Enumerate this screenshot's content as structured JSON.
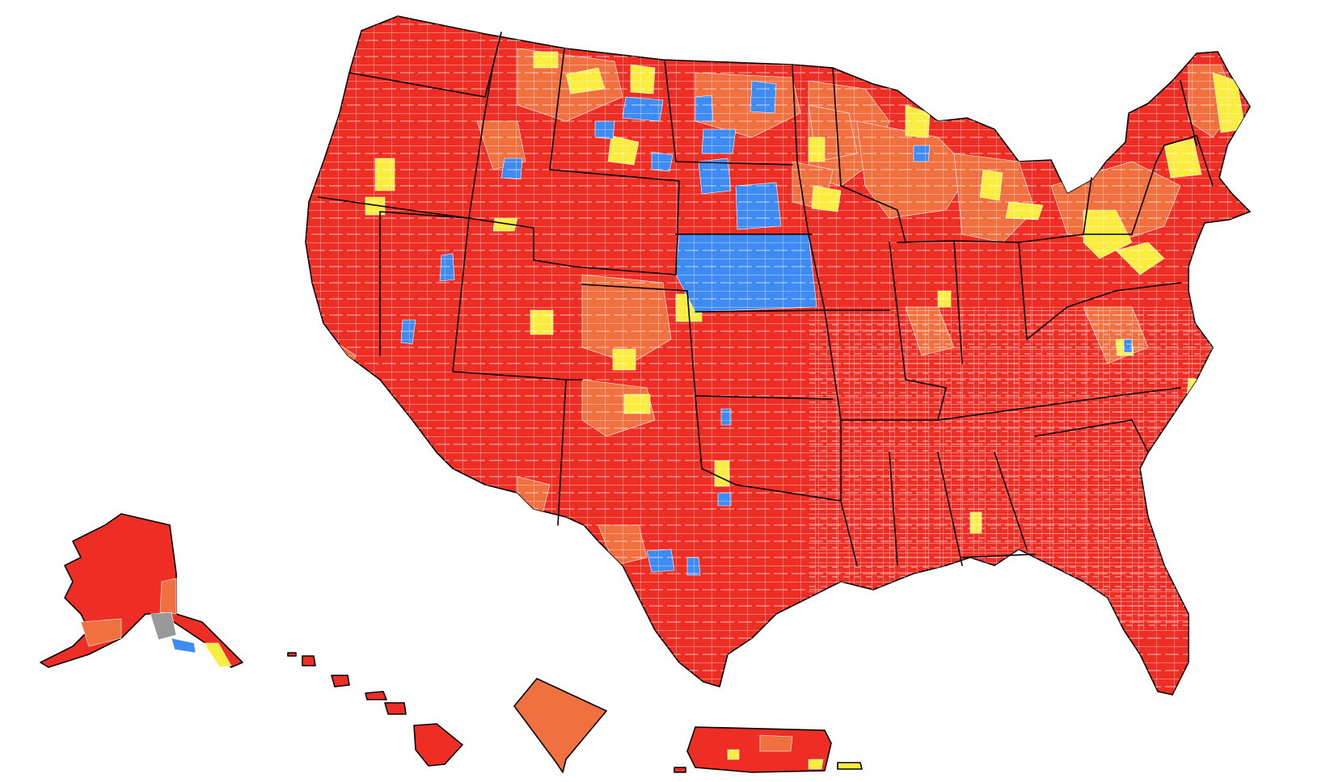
{
  "map": {
    "colors": {
      "high": "#ee2e24",
      "substantial": "#f07040",
      "moderate": "#fbec40",
      "low": "#3e8bf3",
      "no_data": "#999999",
      "county_border": "#ffffff",
      "state_border": "#000000",
      "background": "#ffffff"
    },
    "regions": [
      "contiguous-united-states",
      "alaska",
      "hawaii",
      "district-of-columbia",
      "puerto-rico"
    ]
  }
}
